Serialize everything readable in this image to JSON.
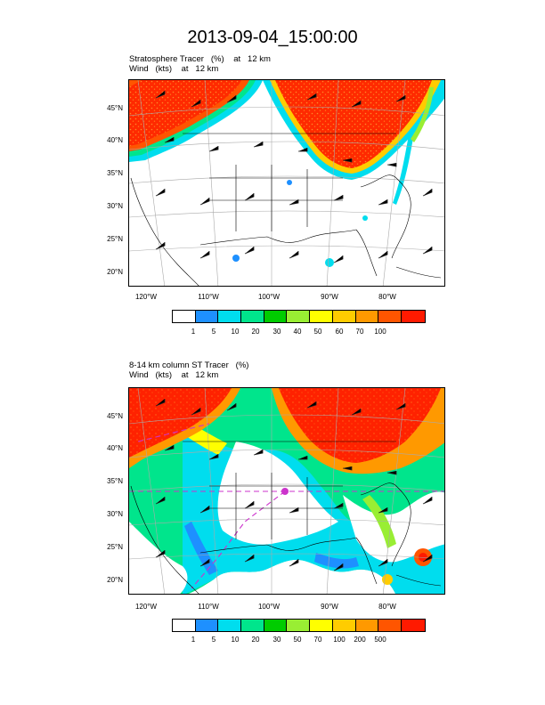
{
  "title": "2013-09-04_15:00:00",
  "colors": {
    "scale": [
      "#ffffff",
      "#1e90ff",
      "#00ddee",
      "#00e58c",
      "#00cc00",
      "#99ee33",
      "#ffff00",
      "#ffcc00",
      "#ff9900",
      "#ff5500",
      "#ff1a00"
    ],
    "land_line": "#000000",
    "grid_line": "#aaaaaa",
    "wind_barb": "#222222",
    "marker": "#cc33cc"
  },
  "panels": [
    {
      "title_line1": "Stratosphere Tracer   (%)    at   12 km",
      "title_line2": "Wind   (kts)    at   12 km",
      "lat_labels": [
        "45°N",
        "40°N",
        "35°N",
        "30°N",
        "25°N",
        "20°N"
      ],
      "lon_labels": [
        "120°W",
        "110°W",
        "100°W",
        "90°W",
        "80°W"
      ],
      "colorbar_labels": [
        "1",
        "5",
        "10",
        "20",
        "30",
        "40",
        "50",
        "60",
        "70",
        "100"
      ]
    },
    {
      "title_line1": "8-14 km column ST Tracer   (%)",
      "title_line2": "Wind   (kts)    at   12 km",
      "lat_labels": [
        "45°N",
        "40°N",
        "35°N",
        "30°N",
        "25°N",
        "20°N"
      ],
      "lon_labels": [
        "120°W",
        "110°W",
        "100°W",
        "90°W",
        "80°W"
      ],
      "colorbar_labels": [
        "1",
        "5",
        "10",
        "20",
        "30",
        "50",
        "70",
        "100",
        "200",
        "500"
      ]
    }
  ]
}
